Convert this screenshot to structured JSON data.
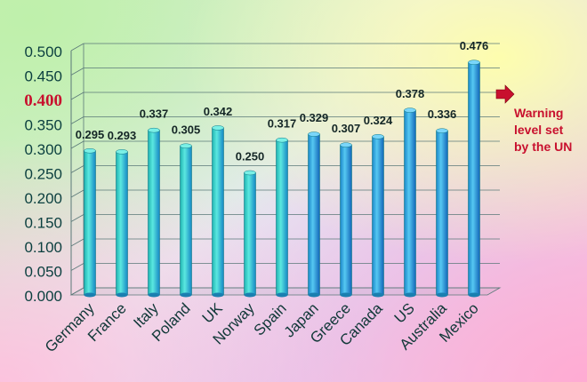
{
  "chart_data": {
    "type": "bar",
    "categories": [
      "Germany",
      "France",
      "Italy",
      "Poland",
      "UK",
      "Norway",
      "Spain",
      "Japan",
      "Greece",
      "Canada",
      "US",
      "Australia",
      "Mexico"
    ],
    "values": [
      0.295,
      0.293,
      0.337,
      0.305,
      0.342,
      0.25,
      0.317,
      0.329,
      0.307,
      0.324,
      0.378,
      0.336,
      0.476
    ],
    "data_labels": [
      "0.295",
      "0.293",
      "0.337",
      "0.305",
      "0.342",
      "0.250",
      "0.317",
      "0.329",
      "0.307",
      "0.324",
      "0.378",
      "0.336",
      "0.476"
    ],
    "y_ticks": [
      "0.000",
      "0.050",
      "0.100",
      "0.150",
      "0.200",
      "0.250",
      "0.300",
      "0.350",
      "0.400",
      "0.450",
      "0.500"
    ],
    "highlighted_tick": "0.400",
    "ylim": [
      0,
      0.5
    ],
    "grid": true,
    "annotation": {
      "text": "Warning\nlevel set\nby the UN",
      "value": 0.4
    },
    "colors": {
      "bar_light": "#36d8c4",
      "bar_dark": "#1a7fd6",
      "tick_text": "#0b3f3f",
      "highlight": "#c8102e",
      "grid": "#5a7878"
    }
  }
}
